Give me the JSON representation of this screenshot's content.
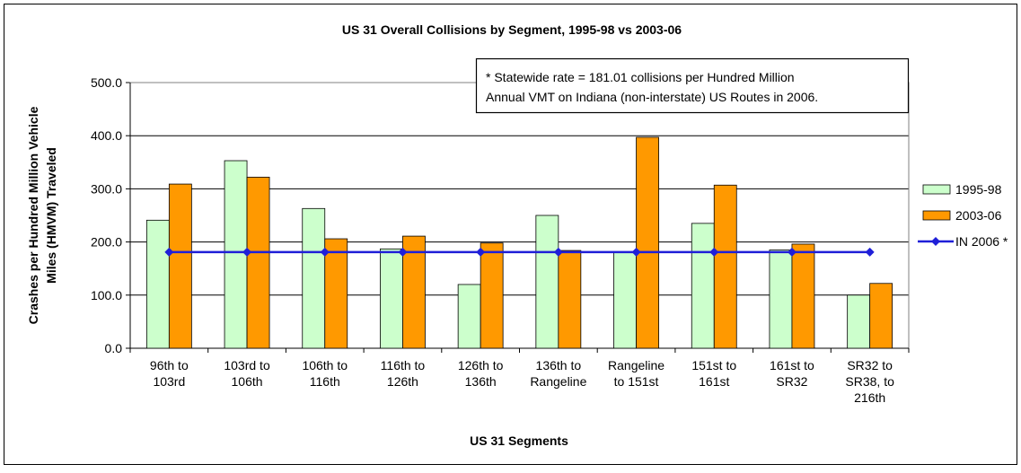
{
  "chart_data": {
    "type": "bar",
    "title": "US 31 Overall Collisions by Segment, 1995-98 vs 2003-06",
    "x_label": "US 31 Segments",
    "y_label": [
      "Crashes per Hundred Million Vehicle",
      "Miles (HMVM) Traveled"
    ],
    "annotation": [
      "*  Statewide rate = 181.01 collisions per Hundred Million",
      "Annual VMT on Indiana (non-interstate) US Routes in 2006."
    ],
    "categories": [
      [
        "96th to",
        "103rd"
      ],
      [
        "103rd to",
        "106th"
      ],
      [
        "106th to",
        "116th"
      ],
      [
        "116th to",
        "126th"
      ],
      [
        "126th to",
        "136th"
      ],
      [
        "136th to",
        "Rangeline"
      ],
      [
        "Rangeline",
        "to 151st"
      ],
      [
        "151st to",
        "161st"
      ],
      [
        "161st to",
        "SR32"
      ],
      [
        "SR32 to",
        "SR38, to",
        "216th"
      ]
    ],
    "series": [
      {
        "name": "1995-98",
        "type": "bar",
        "color": "#ccffcc",
        "values": [
          241,
          353,
          263,
          187,
          120,
          250,
          180,
          235,
          185,
          100
        ]
      },
      {
        "name": "2003-06",
        "type": "bar",
        "color": "#ff9900",
        "values": [
          309,
          322,
          206,
          211,
          198,
          184,
          397,
          307,
          196,
          122
        ]
      },
      {
        "name": "IN 2006 *",
        "type": "line",
        "color": "#1f1fd8",
        "values": [
          181.01,
          181.01,
          181.01,
          181.01,
          181.01,
          181.01,
          181.01,
          181.01,
          181.01,
          181.01
        ]
      }
    ],
    "ylim": [
      0,
      500
    ],
    "yticks": [
      {
        "value": 0,
        "label": "0.0"
      },
      {
        "value": 100,
        "label": "100.0"
      },
      {
        "value": 200,
        "label": "200.0"
      },
      {
        "value": 300,
        "label": "300.0"
      },
      {
        "value": 400,
        "label": "400.0"
      },
      {
        "value": 500,
        "label": "500.0"
      }
    ],
    "grid": true,
    "legend": "right"
  }
}
